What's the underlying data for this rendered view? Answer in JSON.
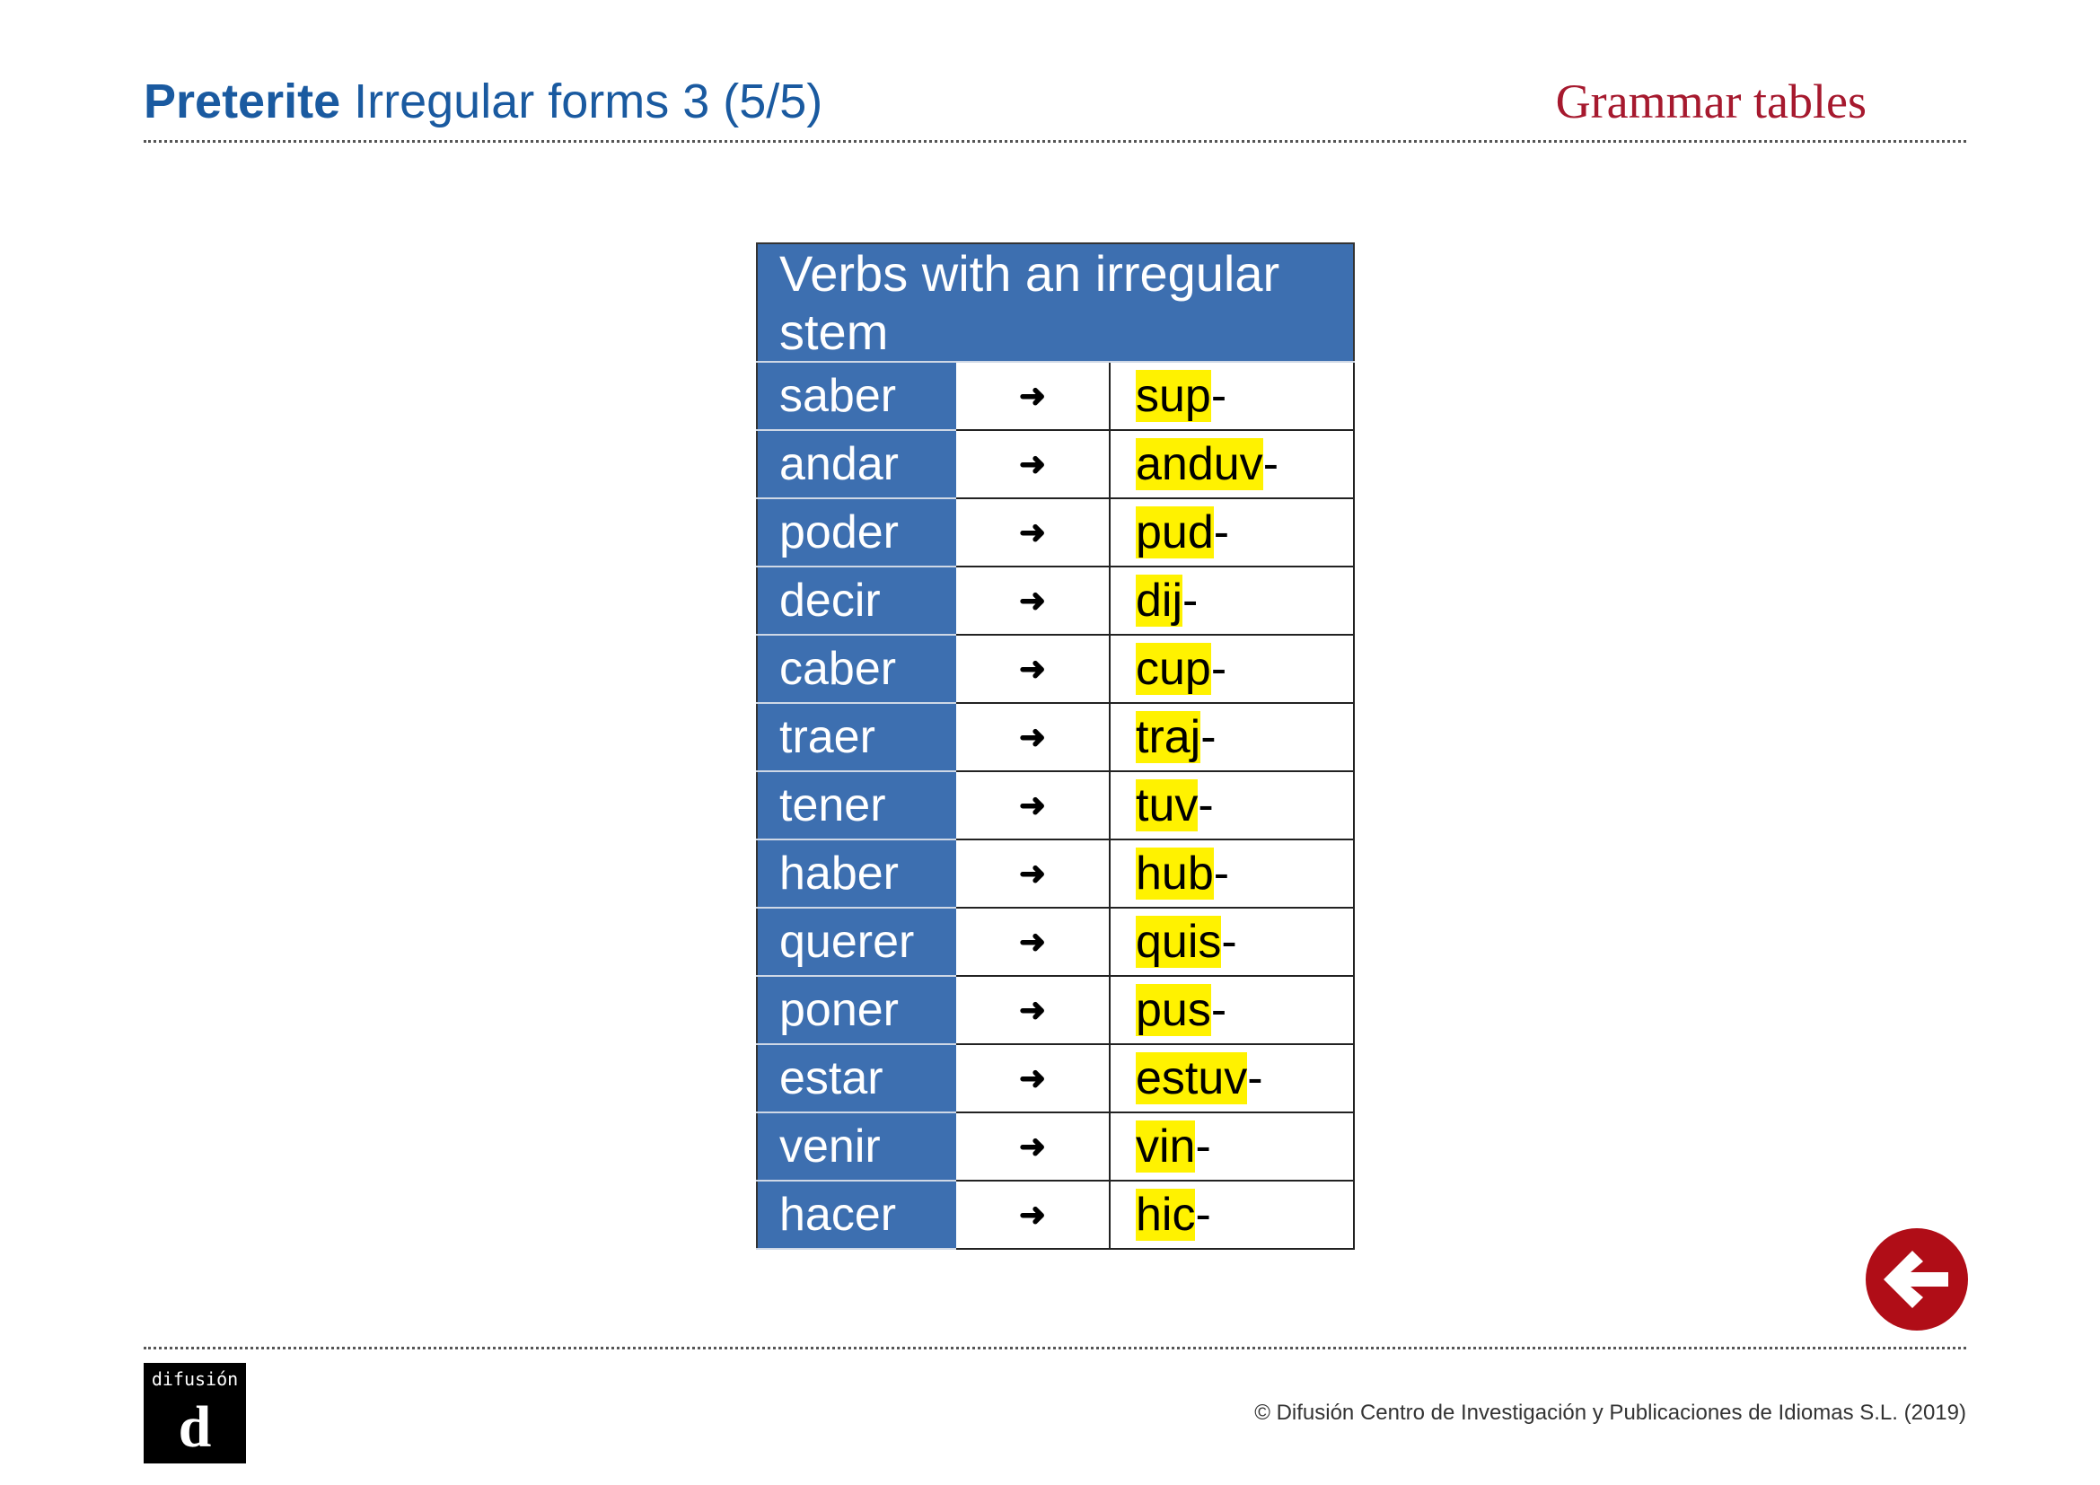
{
  "header": {
    "title_bold": "Preterite",
    "title_rest": "Irregular forms 3 (5/5)",
    "section": "Grammar tables"
  },
  "table": {
    "heading": "Verbs with an irregular stem",
    "arrow": "➜",
    "rows": [
      {
        "verb": "saber",
        "stem": "sup",
        "suffix": "-"
      },
      {
        "verb": "andar",
        "stem": "anduv",
        "suffix": "-"
      },
      {
        "verb": "poder",
        "stem": "pud",
        "suffix": "-"
      },
      {
        "verb": "decir",
        "stem": "dij",
        "suffix": "-"
      },
      {
        "verb": "caber",
        "stem": "cup",
        "suffix": "-"
      },
      {
        "verb": "traer",
        "stem": "traj",
        "suffix": "-"
      },
      {
        "verb": "tener",
        "stem": "tuv",
        "suffix": "-"
      },
      {
        "verb": "haber",
        "stem": "hub",
        "suffix": "-"
      },
      {
        "verb": "querer",
        "stem": "quis",
        "suffix": "-"
      },
      {
        "verb": "poner",
        "stem": "pus",
        "suffix": "-"
      },
      {
        "verb": "estar",
        "stem": "estuv",
        "suffix": "-"
      },
      {
        "verb": "venir",
        "stem": "vin",
        "suffix": "-"
      },
      {
        "verb": "hacer",
        "stem": "hic",
        "suffix": "-"
      }
    ]
  },
  "colors": {
    "title_blue": "#1a5aa0",
    "accent_red": "#a6192e",
    "table_blue": "#3d6fb0",
    "highlight": "#fff200"
  },
  "back_button": {
    "icon": "arrow-left-icon"
  },
  "footer": {
    "logo_text": "difusión",
    "logo_mark": "d",
    "copyright": "© Difusión Centro de Investigación y Publicaciones de Idiomas S.L. (2019)"
  }
}
